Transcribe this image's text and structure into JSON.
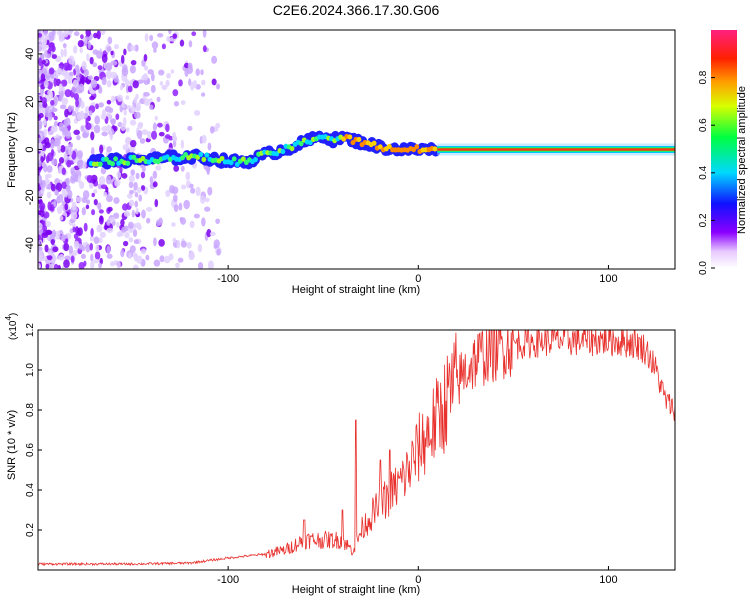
{
  "title": "C2E6.2024.366.17.30.G06",
  "chart_data": [
    {
      "type": "heatmap",
      "xlabel": "Height of straight line (km)",
      "ylabel": "Frequency (Hz)",
      "xlim": [
        -200,
        135
      ],
      "ylim": [
        -50,
        50
      ],
      "x_ticks": [
        -100,
        0,
        100
      ],
      "x_tick_labels": [
        "-100",
        "0",
        "100"
      ],
      "y_ticks": [
        40,
        20,
        0,
        -20,
        -40
      ],
      "y_tick_labels": [
        "40",
        "20",
        "0",
        "-20",
        "-40"
      ],
      "colorbar": {
        "label": "Normalized spectral amplitude",
        "range": [
          0,
          1
        ],
        "ticks": [
          0.0,
          0.2,
          0.4,
          0.6,
          0.8
        ],
        "tick_labels": [
          "0.0",
          "0.2",
          "0.4",
          "0.6",
          "0.8"
        ]
      },
      "ridge": [
        {
          "x": -170,
          "y": -5
        },
        {
          "x": -150,
          "y": -4.5
        },
        {
          "x": -130,
          "y": -3.5
        },
        {
          "x": -115,
          "y": -3
        },
        {
          "x": -100,
          "y": -5
        },
        {
          "x": -90,
          "y": -5
        },
        {
          "x": -80,
          "y": -2
        },
        {
          "x": -70,
          "y": 0
        },
        {
          "x": -60,
          "y": 3
        },
        {
          "x": -50,
          "y": 6
        },
        {
          "x": -45,
          "y": 4
        },
        {
          "x": -40,
          "y": 5
        },
        {
          "x": -30,
          "y": 3
        },
        {
          "x": -20,
          "y": 1
        },
        {
          "x": -10,
          "y": 0
        },
        {
          "x": 0,
          "y": 0
        },
        {
          "x": 10,
          "y": 0
        },
        {
          "x": 135,
          "y": 0
        }
      ]
    },
    {
      "type": "line",
      "xlabel": "Height of straight line (km)",
      "ylabel": "SNR (10 * v/v)",
      "y_exponent_label": "(x10",
      "y_exponent_power": "4",
      "y_exponent_close": ")",
      "xlim": [
        -200,
        135
      ],
      "ylim": [
        0,
        1.2
      ],
      "x_ticks": [
        -100,
        0,
        100
      ],
      "x_tick_labels": [
        "-100",
        "0",
        "100"
      ],
      "y_ticks": [
        0.2,
        0.4,
        0.6,
        0.8,
        1.0,
        1.2
      ],
      "y_tick_labels": [
        "0.2",
        "0.4",
        "0.6",
        "0.8",
        "1.0",
        "1.2"
      ],
      "color": "#e8302c",
      "series": [
        {
          "name": "SNR",
          "x": [
            -200,
            -150,
            -120,
            -100,
            -90,
            -80,
            -70,
            -60,
            -50,
            -40,
            -35,
            -33,
            -30,
            -25,
            -20,
            -15,
            -10,
            -5,
            0,
            5,
            10,
            15,
            20,
            25,
            30,
            35,
            40,
            45,
            50,
            60,
            70,
            80,
            90,
            100,
            110,
            115,
            120,
            125,
            130,
            135
          ],
          "values": [
            0.03,
            0.03,
            0.035,
            0.06,
            0.07,
            0.08,
            0.1,
            0.15,
            0.15,
            0.15,
            0.1,
            0.12,
            0.2,
            0.27,
            0.32,
            0.38,
            0.43,
            0.5,
            0.6,
            0.68,
            0.75,
            0.85,
            0.93,
            1.0,
            1.05,
            1.08,
            1.1,
            1.12,
            1.13,
            1.14,
            1.15,
            1.15,
            1.15,
            1.15,
            1.14,
            1.13,
            1.1,
            1.0,
            0.85,
            0.8
          ],
          "spikes": [
            {
              "x": -33,
              "value": 0.75
            },
            {
              "x": -40,
              "value": 0.3
            },
            {
              "x": -60,
              "value": 0.25
            },
            {
              "x": -20,
              "value": 0.55
            },
            {
              "x": -15,
              "value": 0.6
            }
          ]
        }
      ]
    }
  ]
}
